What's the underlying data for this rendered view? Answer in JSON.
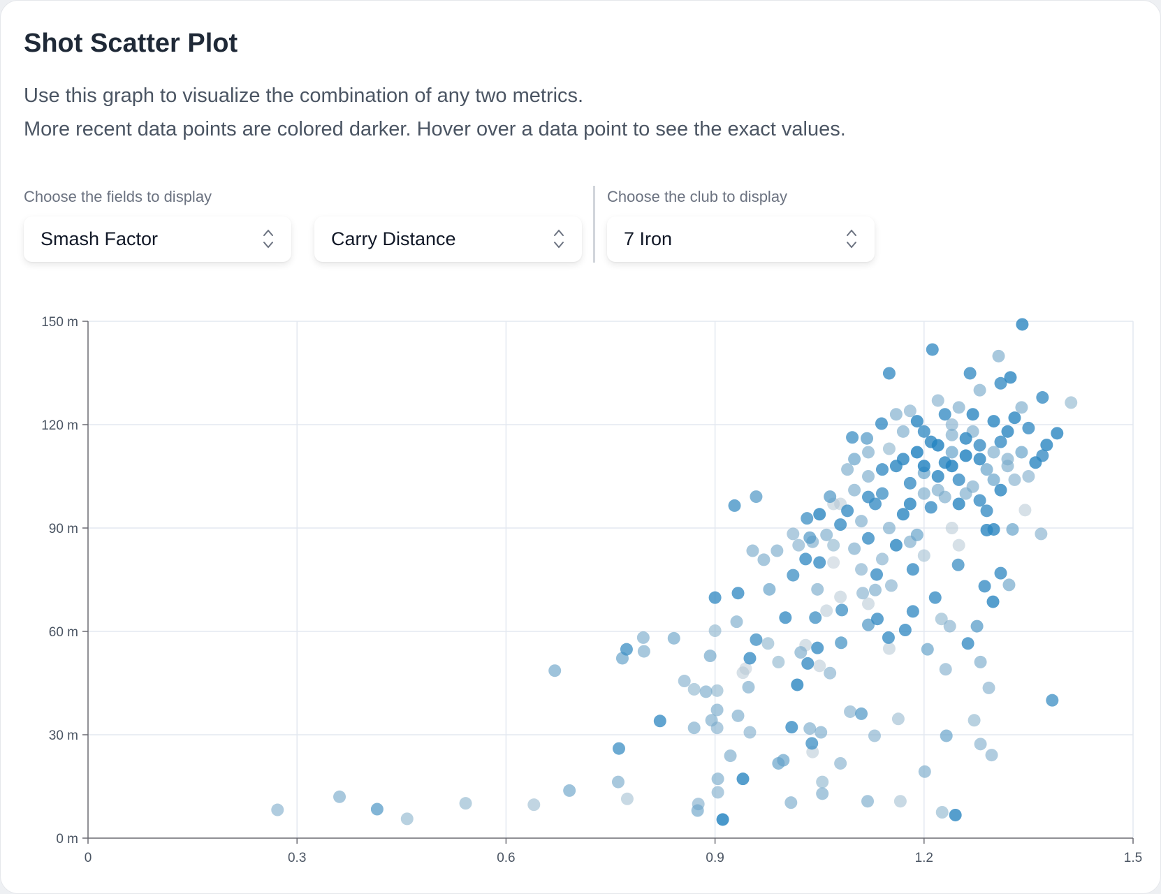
{
  "header": {
    "title": "Shot Scatter Plot",
    "description_lines": [
      "Use this graph to visualize the combination of any two metrics.",
      "More recent data points are colored darker. Hover over a data point to see the exact values."
    ]
  },
  "controls": {
    "fields_label": "Choose the fields to display",
    "x_field": "Smash Factor",
    "y_field": "Carry Distance",
    "club_label": "Choose the club to display",
    "club": "7 Iron"
  },
  "colors": {
    "old": "#d6d6d6",
    "recent": "#1b7fc0",
    "grid": "#e3e8f0",
    "axis": "#6b6b72"
  },
  "chart_data": {
    "type": "scatter",
    "title": "Shot Scatter Plot",
    "xlabel": "Smash Factor",
    "ylabel": "Carry Distance",
    "xlim": [
      0,
      1.5
    ],
    "ylim": [
      0,
      150
    ],
    "x_ticks": [
      "0",
      "0.3",
      "0.6",
      "0.9",
      "1.2",
      "1.5"
    ],
    "y_ticks": [
      "0 m",
      "30 m",
      "60 m",
      "90 m",
      "120 m",
      "150 m"
    ],
    "grid": true,
    "point_format": "[smash_factor, carry_m, recency 0-1]",
    "points": [
      [
        0.272,
        8.2,
        0.45
      ],
      [
        0.361,
        12.0,
        0.5
      ],
      [
        0.415,
        8.4,
        0.7
      ],
      [
        0.458,
        5.6,
        0.4
      ],
      [
        0.542,
        10.1,
        0.4
      ],
      [
        0.64,
        9.7,
        0.35
      ],
      [
        0.67,
        48.6,
        0.55
      ],
      [
        0.691,
        13.8,
        0.55
      ],
      [
        0.761,
        16.3,
        0.5
      ],
      [
        0.762,
        26.0,
        0.8
      ],
      [
        0.774,
        11.4,
        0.3
      ],
      [
        0.767,
        52.2,
        0.6
      ],
      [
        0.773,
        54.8,
        0.8
      ],
      [
        0.797,
        58.2,
        0.5
      ],
      [
        0.798,
        54.2,
        0.5
      ],
      [
        0.821,
        34.0,
        0.85
      ],
      [
        0.841,
        58.0,
        0.55
      ],
      [
        0.856,
        45.6,
        0.45
      ],
      [
        0.87,
        43.2,
        0.4
      ],
      [
        0.87,
        32.0,
        0.5
      ],
      [
        0.876,
        9.9,
        0.45
      ],
      [
        0.875,
        8.0,
        0.55
      ],
      [
        0.887,
        42.5,
        0.5
      ],
      [
        0.9,
        60.2,
        0.4
      ],
      [
        0.903,
        42.8,
        0.4
      ],
      [
        0.893,
        52.9,
        0.55
      ],
      [
        0.9,
        69.8,
        0.85
      ],
      [
        0.895,
        34.2,
        0.5
      ],
      [
        0.903,
        37.2,
        0.5
      ],
      [
        0.903,
        32.0,
        0.45
      ],
      [
        0.904,
        17.2,
        0.5
      ],
      [
        0.904,
        13.3,
        0.45
      ],
      [
        0.911,
        5.4,
        0.95
      ],
      [
        0.922,
        23.9,
        0.5
      ],
      [
        0.928,
        96.5,
        0.8
      ],
      [
        0.931,
        62.8,
        0.5
      ],
      [
        0.933,
        71.1,
        0.85
      ],
      [
        0.933,
        35.5,
        0.5
      ],
      [
        0.94,
        17.2,
        0.9
      ],
      [
        0.944,
        49.2,
        0.15
      ],
      [
        0.948,
        43.8,
        0.5
      ],
      [
        0.95,
        52.2,
        0.85
      ],
      [
        0.95,
        30.7,
        0.45
      ],
      [
        0.954,
        83.4,
        0.5
      ],
      [
        0.959,
        99.1,
        0.7
      ],
      [
        0.959,
        57.6,
        0.8
      ],
      [
        0.97,
        80.8,
        0.5
      ],
      [
        0.976,
        56.5,
        0.4
      ],
      [
        0.978,
        72.2,
        0.6
      ],
      [
        0.989,
        83.4,
        0.5
      ],
      [
        0.991,
        51.1,
        0.4
      ],
      [
        0.991,
        21.7,
        0.6
      ],
      [
        0.998,
        22.6,
        0.6
      ],
      [
        1.001,
        64.0,
        0.85
      ],
      [
        1.009,
        10.3,
        0.5
      ],
      [
        1.01,
        32.2,
        0.85
      ],
      [
        1.012,
        88.3,
        0.45
      ],
      [
        1.012,
        76.3,
        0.8
      ],
      [
        1.018,
        44.5,
        0.9
      ],
      [
        1.023,
        53.9,
        0.5
      ],
      [
        1.032,
        92.8,
        0.8
      ],
      [
        1.033,
        50.7,
        0.85
      ],
      [
        1.036,
        87.2,
        0.7
      ],
      [
        1.036,
        31.8,
        0.5
      ],
      [
        1.039,
        27.5,
        0.8
      ],
      [
        1.044,
        64.0,
        0.8
      ],
      [
        1.047,
        55.2,
        0.85
      ],
      [
        1.047,
        72.2,
        0.5
      ],
      [
        1.052,
        30.7,
        0.5
      ],
      [
        1.054,
        16.3,
        0.4
      ],
      [
        1.054,
        12.9,
        0.5
      ],
      [
        1.065,
        47.9,
        0.45
      ],
      [
        1.065,
        99.1,
        0.7
      ],
      [
        1.081,
        56.7,
        0.75
      ],
      [
        1.082,
        66.2,
        0.8
      ],
      [
        1.08,
        21.7,
        0.45
      ],
      [
        1.094,
        36.7,
        0.45
      ],
      [
        1.097,
        116.3,
        0.8
      ],
      [
        1.11,
        36.1,
        0.7
      ],
      [
        1.112,
        71.1,
        0.45
      ],
      [
        1.118,
        116.0,
        0.7
      ],
      [
        1.12,
        61.9,
        0.7
      ],
      [
        1.119,
        10.7,
        0.5
      ],
      [
        1.129,
        29.7,
        0.45
      ],
      [
        1.132,
        76.5,
        0.85
      ],
      [
        1.133,
        63.6,
        0.85
      ],
      [
        1.139,
        120.3,
        0.85
      ],
      [
        1.149,
        58.2,
        0.85
      ],
      [
        1.15,
        134.9,
        0.85
      ],
      [
        1.153,
        73.3,
        0.45
      ],
      [
        1.163,
        34.6,
        0.35
      ],
      [
        1.166,
        10.7,
        0.3
      ],
      [
        1.173,
        60.4,
        0.85
      ],
      [
        1.184,
        65.8,
        0.85
      ],
      [
        1.184,
        78.0,
        0.85
      ],
      [
        1.201,
        19.3,
        0.5
      ],
      [
        1.205,
        54.8,
        0.6
      ],
      [
        1.212,
        141.8,
        0.85
      ],
      [
        1.216,
        69.8,
        0.85
      ],
      [
        1.225,
        63.6,
        0.4
      ],
      [
        1.226,
        7.5,
        0.4
      ],
      [
        1.231,
        49.0,
        0.45
      ],
      [
        1.232,
        29.7,
        0.6
      ],
      [
        1.237,
        61.5,
        0.45
      ],
      [
        1.245,
        6.7,
        0.9
      ],
      [
        1.249,
        79.3,
        0.8
      ],
      [
        1.263,
        56.5,
        0.85
      ],
      [
        1.266,
        134.9,
        0.85
      ],
      [
        1.272,
        34.2,
        0.4
      ],
      [
        1.276,
        61.5,
        0.7
      ],
      [
        1.281,
        51.1,
        0.5
      ],
      [
        1.281,
        27.3,
        0.45
      ],
      [
        1.287,
        73.1,
        0.85
      ],
      [
        1.29,
        89.4,
        0.9
      ],
      [
        1.293,
        43.6,
        0.45
      ],
      [
        1.297,
        24.1,
        0.45
      ],
      [
        1.299,
        68.6,
        0.9
      ],
      [
        1.3,
        89.6,
        0.9
      ],
      [
        1.307,
        139.9,
        0.5
      ],
      [
        1.31,
        76.9,
        0.85
      ],
      [
        1.322,
        73.5,
        0.55
      ],
      [
        1.324,
        133.7,
        0.9
      ],
      [
        1.327,
        89.6,
        0.6
      ],
      [
        1.341,
        149.1,
        0.9
      ],
      [
        1.345,
        95.2,
        0.2
      ],
      [
        1.368,
        88.3,
        0.45
      ],
      [
        1.37,
        127.9,
        0.85
      ],
      [
        1.376,
        114.1,
        0.9
      ],
      [
        1.384,
        40.0,
        0.8
      ],
      [
        1.391,
        117.5,
        0.9
      ],
      [
        1.411,
        126.4,
        0.4
      ],
      [
        1.1,
        110,
        0.6
      ],
      [
        1.12,
        105,
        0.5
      ],
      [
        1.14,
        100,
        0.8
      ],
      [
        1.15,
        113,
        0.4
      ],
      [
        1.16,
        108,
        0.9
      ],
      [
        1.17,
        118,
        0.5
      ],
      [
        1.18,
        103,
        0.85
      ],
      [
        1.19,
        112,
        0.95
      ],
      [
        1.2,
        106,
        0.6
      ],
      [
        1.21,
        115,
        0.9
      ],
      [
        1.22,
        101,
        0.5
      ],
      [
        1.23,
        109,
        0.9
      ],
      [
        1.24,
        120,
        0.45
      ],
      [
        1.25,
        104,
        0.85
      ],
      [
        1.26,
        111,
        0.95
      ],
      [
        1.27,
        118,
        0.5
      ],
      [
        1.28,
        98,
        0.85
      ],
      [
        1.29,
        107,
        0.6
      ],
      [
        1.3,
        121,
        0.9
      ],
      [
        1.31,
        115,
        0.85
      ],
      [
        1.32,
        108,
        0.5
      ],
      [
        1.33,
        122,
        0.9
      ],
      [
        1.34,
        112,
        0.6
      ],
      [
        1.35,
        119,
        0.85
      ],
      [
        1.36,
        109,
        0.9
      ],
      [
        1.09,
        95,
        0.85
      ],
      [
        1.11,
        92,
        0.5
      ],
      [
        1.13,
        97,
        0.85
      ],
      [
        1.15,
        90,
        0.5
      ],
      [
        1.17,
        94,
        0.9
      ],
      [
        1.19,
        88,
        0.6
      ],
      [
        1.21,
        96,
        0.85
      ],
      [
        1.23,
        99,
        0.5
      ],
      [
        1.25,
        97,
        0.9
      ],
      [
        1.27,
        102,
        0.5
      ],
      [
        1.29,
        95,
        0.85
      ],
      [
        1.31,
        101,
        0.9
      ],
      [
        1.06,
        88,
        0.5
      ],
      [
        1.08,
        91,
        0.85
      ],
      [
        1.07,
        85,
        0.4
      ],
      [
        1.1,
        84,
        0.5
      ],
      [
        1.12,
        87,
        0.85
      ],
      [
        1.14,
        81,
        0.45
      ],
      [
        1.16,
        85,
        0.9
      ],
      [
        1.18,
        86,
        0.5
      ],
      [
        1.2,
        82,
        0.3
      ],
      [
        1.05,
        80,
        0.85
      ],
      [
        1.04,
        86,
        0.5
      ],
      [
        1.03,
        81,
        0.85
      ],
      [
        1.02,
        85,
        0.45
      ],
      [
        1.16,
        123,
        0.5
      ],
      [
        1.18,
        124,
        0.45
      ],
      [
        1.22,
        127,
        0.45
      ],
      [
        1.25,
        125,
        0.5
      ],
      [
        1.28,
        130,
        0.5
      ],
      [
        1.31,
        132,
        0.85
      ],
      [
        1.34,
        125,
        0.5
      ],
      [
        1.2,
        118,
        0.85
      ],
      [
        1.22,
        114,
        0.95
      ],
      [
        1.24,
        112,
        0.6
      ],
      [
        1.26,
        116,
        0.9
      ],
      [
        1.28,
        114,
        0.85
      ],
      [
        1.3,
        112,
        0.5
      ],
      [
        1.32,
        118,
        0.9
      ],
      [
        1.33,
        104,
        0.45
      ],
      [
        1.12,
        112,
        0.5
      ],
      [
        1.14,
        107,
        0.85
      ],
      [
        1.18,
        97,
        0.9
      ],
      [
        1.2,
        100,
        0.5
      ],
      [
        1.22,
        105,
        0.9
      ],
      [
        1.24,
        108,
        0.95
      ],
      [
        1.26,
        100,
        0.5
      ],
      [
        1.28,
        110,
        0.9
      ],
      [
        1.3,
        104,
        0.6
      ],
      [
        1.08,
        97,
        0.2
      ],
      [
        1.1,
        101,
        0.5
      ],
      [
        1.12,
        99,
        0.85
      ],
      [
        1.09,
        107,
        0.5
      ],
      [
        1.07,
        80,
        0.15
      ],
      [
        1.11,
        78,
        0.45
      ],
      [
        1.13,
        72,
        0.5
      ],
      [
        1.05,
        94,
        0.9
      ],
      [
        1.35,
        105,
        0.45
      ],
      [
        1.37,
        111,
        0.85
      ],
      [
        1.32,
        110,
        0.5
      ],
      [
        1.19,
        121,
        0.9
      ],
      [
        1.23,
        123,
        0.85
      ],
      [
        1.27,
        123,
        0.9
      ],
      [
        1.24,
        117,
        0.5
      ],
      [
        1.2,
        108,
        0.95
      ],
      [
        1.17,
        110,
        0.9
      ],
      [
        1.08,
        70,
        0.2
      ],
      [
        1.12,
        68,
        0.2
      ],
      [
        1.03,
        56,
        0.2
      ],
      [
        1.05,
        50,
        0.2
      ],
      [
        1.15,
        55,
        0.2
      ],
      [
        1.25,
        85,
        0.2
      ],
      [
        1.07,
        97,
        0.2
      ],
      [
        1.04,
        25,
        0.2
      ],
      [
        0.94,
        48,
        0.2
      ],
      [
        1.06,
        66,
        0.2
      ],
      [
        1.24,
        90,
        0.2
      ]
    ]
  }
}
